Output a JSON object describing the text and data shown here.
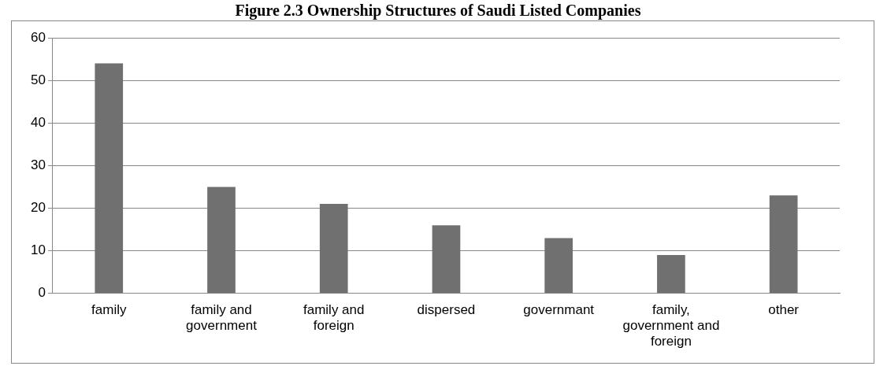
{
  "chart_data": {
    "type": "bar",
    "title": "Figure 2.3 Ownership Structures of Saudi Listed Companies",
    "categories": [
      "family",
      "family and government",
      "family and foreign",
      "dispersed",
      "governmant",
      "family, government and foreign",
      "other"
    ],
    "values": [
      54,
      25,
      21,
      16,
      13,
      9,
      23
    ],
    "color": "#707070",
    "ylim": [
      0,
      60
    ],
    "yticks": [
      0,
      10,
      20,
      30,
      40,
      50,
      60
    ],
    "grid": "y"
  }
}
